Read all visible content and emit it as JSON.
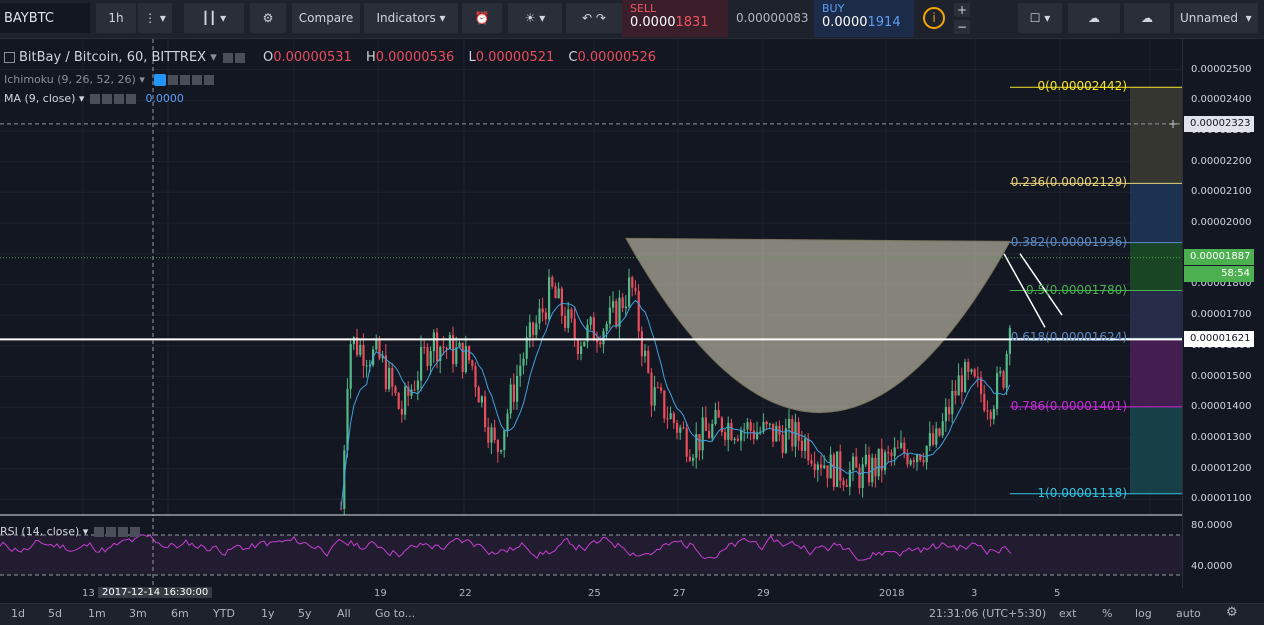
{
  "toolbar": {
    "symbol": "BAYBTC",
    "interval": "1h",
    "compare": "Compare",
    "indicators": "Indicators",
    "sell_label": "SELL",
    "sell_price_main": "0.0000",
    "sell_price_accent": "1831",
    "spread": "0.00000083",
    "buy_label": "BUY",
    "buy_price_main": "0.0000",
    "buy_price_accent": "1914",
    "layout_name": "Unnamed"
  },
  "legend": {
    "title": "BitBay / Bitcoin, 60, BITTREX",
    "o_label": "O",
    "o_value": "0.00000531",
    "h_label": "H",
    "h_value": "0.00000536",
    "l_label": "L",
    "l_value": "0.00000521",
    "c_label": "C",
    "c_value": "0.00000526",
    "ichimoku": "Ichimoku (9, 26, 52, 26)",
    "ma": "MA (9, close)",
    "ma_value": "0.0000",
    "rsi": "RSI (14, close)"
  },
  "fib": [
    {
      "text": "0(0.00002442)",
      "color": "#f7e52a",
      "price": 2.442e-05
    },
    {
      "text": "0.236(0.00002129)",
      "color": "#e8d27a",
      "price": 2.129e-05
    },
    {
      "text": "0.382(0.00001936)",
      "color": "#5f8cc3",
      "price": 1.936e-05
    },
    {
      "text": "0.5(0.00001780)",
      "color": "#4caf50",
      "price": 1.78e-05
    },
    {
      "text": "0.618(0.00001624)",
      "color": "#5f8cc3",
      "price": 1.624e-05
    },
    {
      "text": "0.786(0.00001401)",
      "color": "#c82fd8",
      "price": 1.401e-05
    },
    {
      "text": "1(0.00001118)",
      "color": "#35c2e0",
      "price": 1.118e-05
    }
  ],
  "price_axis": {
    "ticks": [
      "0.00002500",
      "0.00002400",
      "0.00002300",
      "0.00002200",
      "0.00002100",
      "0.00002000",
      "0.00001900",
      "0.00001800",
      "0.00001700",
      "0.00001600",
      "0.00001500",
      "0.00001400",
      "0.00001300",
      "0.00001200",
      "0.00001100"
    ],
    "crosshair_price": "0.00002323",
    "last_price": "0.00001887",
    "countdown": "58:54",
    "line_price": "0.00001621"
  },
  "rsi_axis": {
    "ticks": [
      "80.0000",
      "40.0000"
    ]
  },
  "time_axis": {
    "labels": [
      "13",
      "19",
      "22",
      "25",
      "27",
      "29",
      "2018",
      "3",
      "5"
    ],
    "crosshair_time": "2017-12-14 16:30:00"
  },
  "bottom": {
    "ranges": [
      "1d",
      "5d",
      "1m",
      "3m",
      "6m",
      "YTD",
      "1y",
      "5y",
      "All"
    ],
    "goto": "Go to...",
    "clock": "21:31:06 (UTC+5:30)",
    "ext": "ext",
    "pct": "%",
    "log": "log",
    "auto": "auto"
  },
  "colors": {
    "up": "#53b987",
    "down": "#eb4d5c",
    "bg": "#131722",
    "rsi": "#c63ed1",
    "cup": "#e2dcc2"
  }
}
